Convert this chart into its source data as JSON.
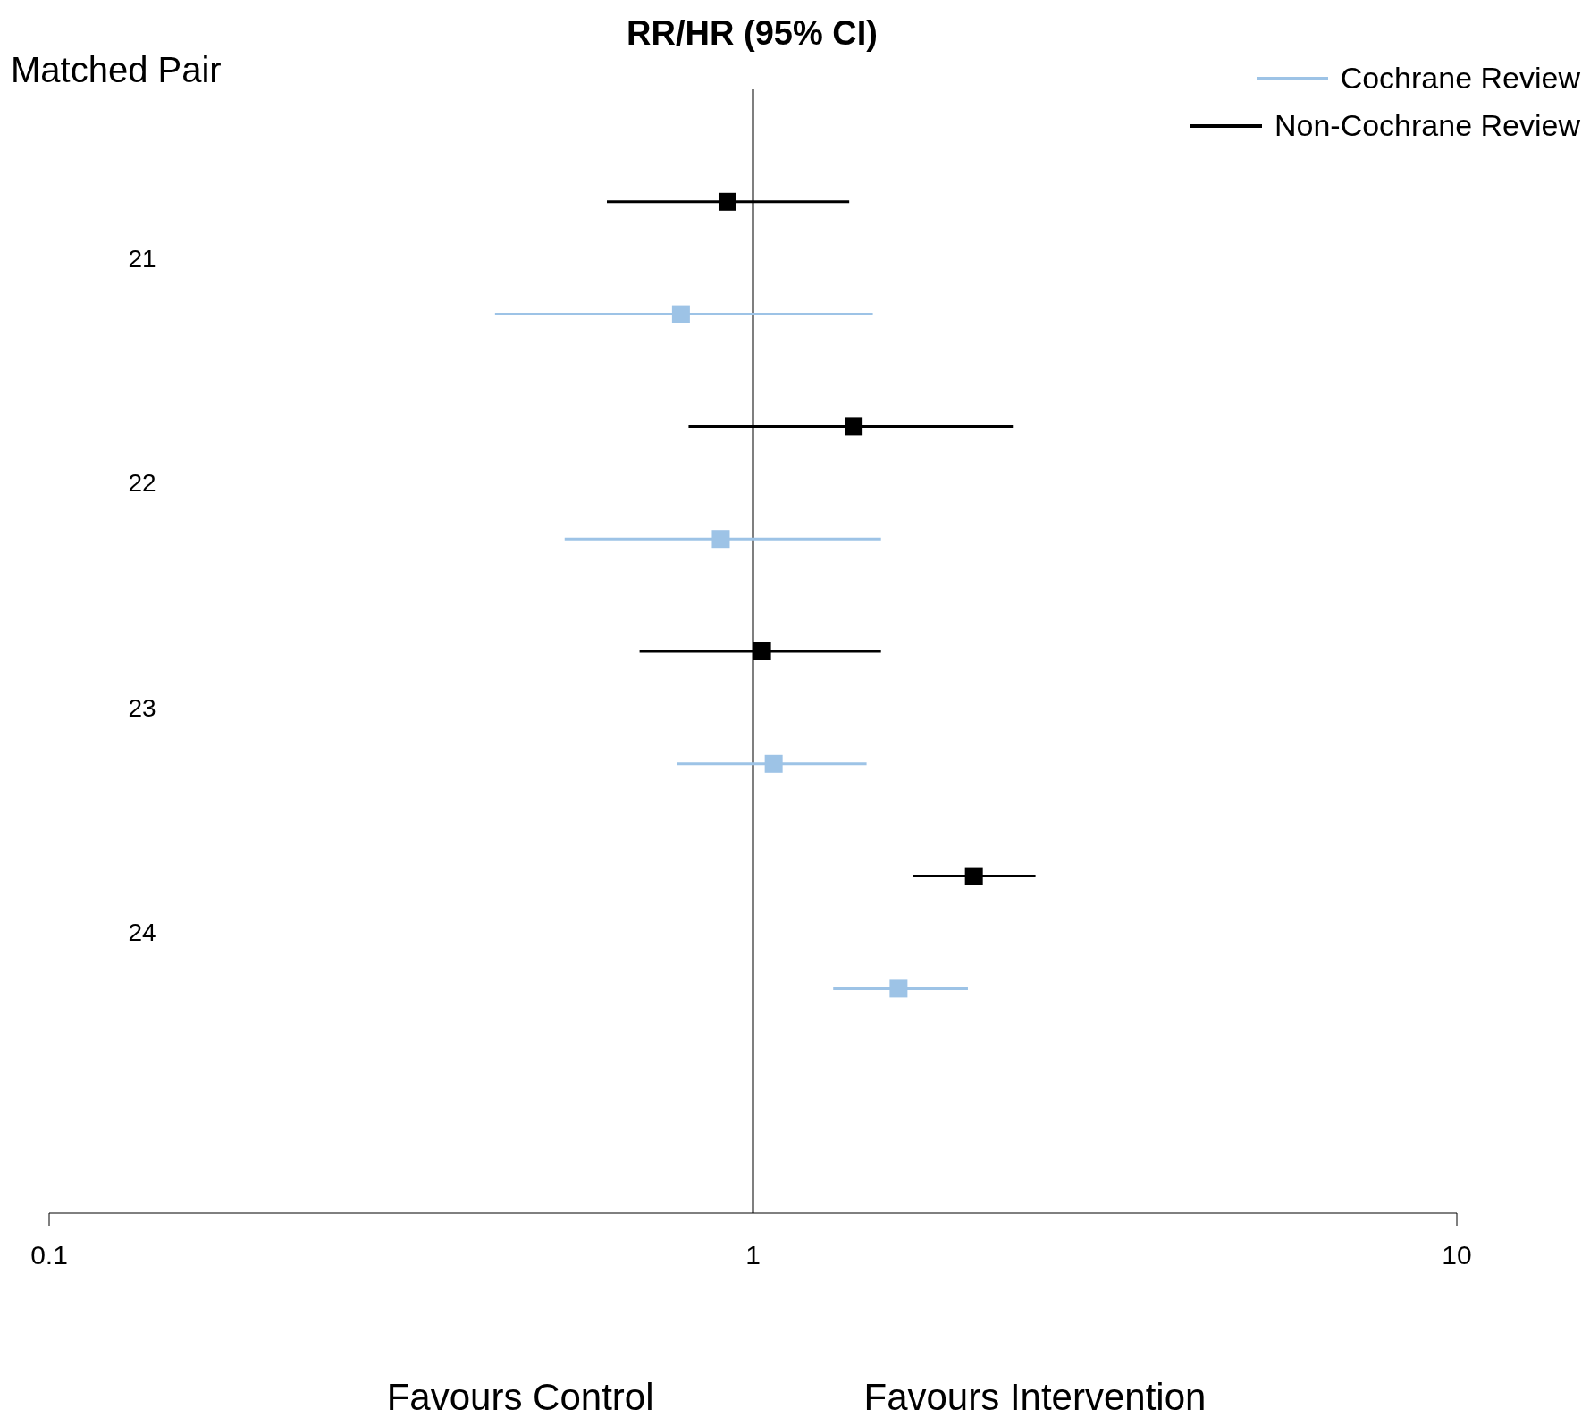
{
  "chart_data": {
    "type": "scatter",
    "title": "RR/HR (95% CI)",
    "ylabel": "Matched Pair",
    "orientation": "horizontal",
    "categories": [
      "21",
      "22",
      "23",
      "24"
    ],
    "series": [
      {
        "name": "Non-Cochrane Review",
        "color": "#000000",
        "values": [
          0.92,
          1.39,
          1.03,
          2.06
        ],
        "errors": [
          [
            0.62,
            1.37
          ],
          [
            0.81,
            2.34
          ],
          [
            0.69,
            1.52
          ],
          [
            1.69,
            2.52
          ]
        ]
      },
      {
        "name": "Cochrane Review",
        "color": "#9dc3e6",
        "values": [
          0.79,
          0.9,
          1.07,
          1.61
        ],
        "errors": [
          [
            0.43,
            1.48
          ],
          [
            0.54,
            1.52
          ],
          [
            0.78,
            1.45
          ],
          [
            1.3,
            2.02
          ]
        ]
      }
    ],
    "xlim": [
      0.1,
      10
    ],
    "xticks": [
      0.1,
      1,
      10
    ],
    "log": "x",
    "marker": "square",
    "legend": "top right",
    "grid": false,
    "ref_lines": [
      {
        "axis": "x",
        "value": 1,
        "color": "#000000"
      }
    ],
    "annotations": [
      "Favours Control",
      "Favours Intervention"
    ]
  }
}
